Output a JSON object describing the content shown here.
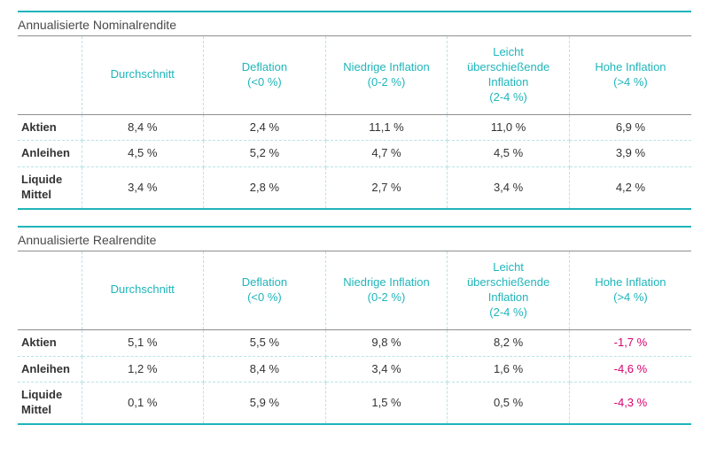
{
  "colors": {
    "accent": "#1fb5ba",
    "neg": "#d6006c",
    "text": "#333333",
    "header_rule": "#8e8e8e",
    "dash": "#b8e4e6"
  },
  "columns": [
    {
      "label": "Durchschnitt",
      "sub": ""
    },
    {
      "label": "Deflation",
      "sub": "(<0 %)"
    },
    {
      "label": "Niedrige Inflation",
      "sub": "(0-2 %)"
    },
    {
      "label": "Leicht überschießende Inflation",
      "sub": "(2-4 %)"
    },
    {
      "label": "Hohe Inflation",
      "sub": "(>4 %)"
    }
  ],
  "row_labels": [
    "Aktien",
    "Anleihen",
    "Liquide Mittel"
  ],
  "tables": [
    {
      "title": "Annualisierte Nominalrendite",
      "rows": [
        [
          {
            "v": "8,4 %"
          },
          {
            "v": "2,4 %"
          },
          {
            "v": "11,1 %"
          },
          {
            "v": "11,0 %"
          },
          {
            "v": "6,9 %"
          }
        ],
        [
          {
            "v": "4,5 %"
          },
          {
            "v": "5,2 %"
          },
          {
            "v": "4,7 %"
          },
          {
            "v": "4,5 %"
          },
          {
            "v": "3,9 %"
          }
        ],
        [
          {
            "v": "3,4 %"
          },
          {
            "v": "2,8 %"
          },
          {
            "v": "2,7 %"
          },
          {
            "v": "3,4 %"
          },
          {
            "v": "4,2 %"
          }
        ]
      ]
    },
    {
      "title": "Annualisierte Realrendite",
      "rows": [
        [
          {
            "v": "5,1 %"
          },
          {
            "v": "5,5 %"
          },
          {
            "v": "9,8 %"
          },
          {
            "v": "8,2 %"
          },
          {
            "v": "-1,7 %",
            "neg": true
          }
        ],
        [
          {
            "v": "1,2 %"
          },
          {
            "v": "8,4 %"
          },
          {
            "v": "3,4 %"
          },
          {
            "v": "1,6 %"
          },
          {
            "v": "-4,6 %",
            "neg": true
          }
        ],
        [
          {
            "v": "0,1 %"
          },
          {
            "v": "5,9 %"
          },
          {
            "v": "1,5 %"
          },
          {
            "v": "0,5 %"
          },
          {
            "v": "-4,3 %",
            "neg": true
          }
        ]
      ]
    }
  ]
}
